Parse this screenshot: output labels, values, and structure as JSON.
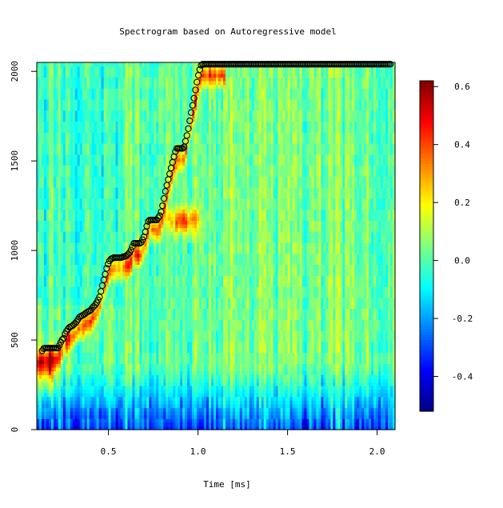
{
  "chart_data": {
    "type": "heatmap",
    "title": "Spectrogram based on Autoregressive model",
    "xlabel": "Time [ms]",
    "ylabel": "",
    "xlim": [
      0.1,
      2.1
    ],
    "ylim": [
      0,
      2050
    ],
    "x_ticks": [
      0.5,
      1.0,
      1.5,
      2.0
    ],
    "x_tick_labels": [
      "0.5",
      "1.0",
      "1.5",
      "2.0"
    ],
    "y_ticks": [
      0,
      500,
      1000,
      1500,
      2000
    ],
    "y_tick_labels": [
      "0",
      "500",
      "1000",
      "1500",
      "2000"
    ],
    "colorbar": {
      "range": [
        -0.52,
        0.62
      ],
      "ticks": [
        -0.4,
        -0.2,
        0.0,
        0.2,
        0.4,
        0.6
      ],
      "tick_labels": [
        "-0.4",
        "-0.2",
        "0.0",
        "0.2",
        "0.4",
        "0.6"
      ],
      "colormap": [
        "#00007f",
        "#0000ff",
        "#007fff",
        "#00ffff",
        "#7fff7f",
        "#ffff00",
        "#ff7f00",
        "#ff0000",
        "#7f0000"
      ]
    },
    "overlay_series": {
      "name": "",
      "marker": "open-circle",
      "x": [
        0.13,
        0.14,
        0.16,
        0.18,
        0.2,
        0.22,
        0.23,
        0.24,
        0.25,
        0.26,
        0.28,
        0.3,
        0.32,
        0.34,
        0.36,
        0.38,
        0.4,
        0.41,
        0.43,
        0.45,
        0.46,
        0.47,
        0.48,
        0.49,
        0.5,
        0.51,
        0.52,
        0.53,
        0.55,
        0.57,
        0.6,
        0.62,
        0.63,
        0.64,
        0.66,
        0.68,
        0.7,
        0.71,
        0.72,
        0.73,
        0.75,
        0.77,
        0.79,
        0.8,
        0.81,
        0.82,
        0.83,
        0.84,
        0.85,
        0.86,
        0.87,
        0.88,
        0.9,
        0.92,
        0.93,
        0.94,
        0.95,
        0.96,
        0.97,
        0.98,
        0.99,
        1.0,
        1.01,
        1.02,
        1.05,
        1.1,
        1.2,
        1.3,
        1.4,
        1.5,
        1.6,
        1.7,
        1.8,
        1.9,
        2.0,
        2.08
      ],
      "y": [
        440,
        455,
        455,
        455,
        455,
        455,
        480,
        500,
        510,
        540,
        570,
        580,
        600,
        630,
        640,
        655,
        665,
        680,
        700,
        740,
        780,
        820,
        860,
        900,
        930,
        950,
        955,
        960,
        960,
        960,
        970,
        990,
        1010,
        1040,
        1040,
        1040,
        1080,
        1120,
        1160,
        1170,
        1170,
        1170,
        1200,
        1240,
        1290,
        1340,
        1380,
        1420,
        1460,
        1500,
        1540,
        1570,
        1570,
        1570,
        1610,
        1650,
        1700,
        1760,
        1810,
        1860,
        1920,
        1970,
        2010,
        2040,
        2040,
        2040,
        2040,
        2040,
        2040,
        2040,
        2040,
        2040,
        2040,
        2040,
        2040,
        2040
      ]
    }
  }
}
